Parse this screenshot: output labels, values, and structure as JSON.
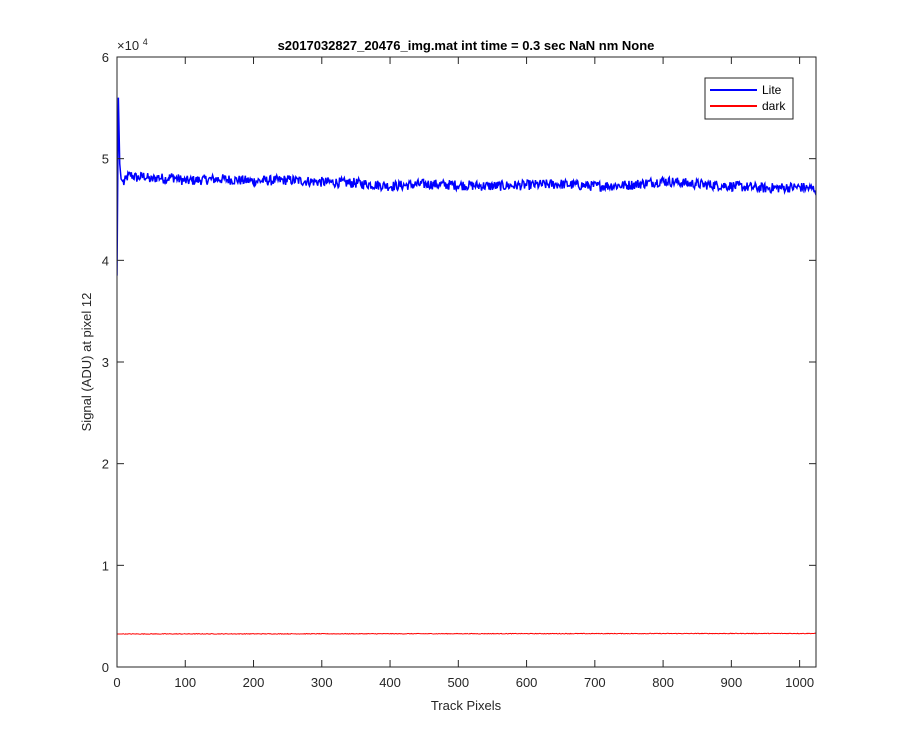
{
  "chart_data": {
    "type": "line",
    "title": "s2017032827_20476_img.mat int time = 0.3 sec  NaN nm None",
    "xlabel": "Track Pixels",
    "ylabel": "Signal (ADU) at pixel 12",
    "y_exponent_label": "×10",
    "y_exponent_power": "4",
    "xlim": [
      0,
      1024
    ],
    "ylim": [
      0,
      60000
    ],
    "xticks": [
      0,
      100,
      200,
      300,
      400,
      500,
      600,
      700,
      800,
      900,
      1000
    ],
    "xtick_labels": [
      "0",
      "100",
      "200",
      "300",
      "400",
      "500",
      "600",
      "700",
      "800",
      "900",
      "1000"
    ],
    "yticks": [
      0,
      10000,
      20000,
      30000,
      40000,
      50000,
      60000
    ],
    "ytick_labels": [
      "0",
      "1",
      "2",
      "3",
      "4",
      "5",
      "6"
    ],
    "grid": false,
    "legend_position": "top-right",
    "series": [
      {
        "name": "Lite",
        "color": "#0000ff",
        "x": [
          0,
          2,
          4,
          6,
          8,
          10,
          15,
          20,
          30,
          40,
          50,
          60,
          70,
          80,
          100,
          120,
          150,
          200,
          250,
          300,
          350,
          400,
          450,
          500,
          550,
          600,
          650,
          700,
          750,
          800,
          850,
          900,
          950,
          1000,
          1024
        ],
        "y": [
          38500,
          56000,
          49500,
          48000,
          47800,
          47600,
          48200,
          48400,
          48100,
          48300,
          47900,
          48200,
          48000,
          48200,
          47800,
          47900,
          48000,
          47800,
          47900,
          47700,
          47600,
          47300,
          47500,
          47400,
          47300,
          47400,
          47500,
          47300,
          47400,
          47800,
          47500,
          47300,
          47100,
          47200,
          47000
        ],
        "noise_amplitude": 500
      },
      {
        "name": "dark",
        "color": "#ff0000",
        "x": [
          0,
          1024
        ],
        "y": [
          3250,
          3300
        ],
        "noise_amplitude": 30
      }
    ]
  }
}
